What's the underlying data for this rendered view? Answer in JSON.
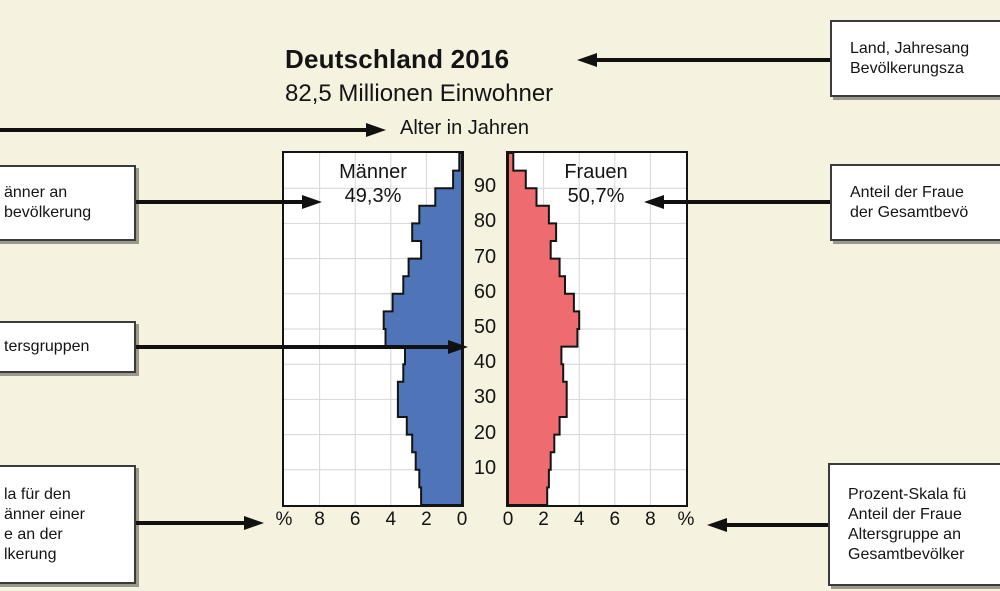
{
  "header": {
    "title": "Deutschland 2016",
    "subtitle": "82,5 Millionen Einwohner",
    "age_axis_label": "Alter in Jahren"
  },
  "chart": {
    "left_group": {
      "name": "Männer",
      "share": "49,3%"
    },
    "right_group": {
      "name": "Frauen",
      "share": "50,7%"
    },
    "age_ticks": [
      "90",
      "80",
      "70",
      "60",
      "50",
      "40",
      "30",
      "20",
      "10"
    ],
    "x_ticks_left": [
      "%",
      "8",
      "6",
      "4",
      "2",
      "0"
    ],
    "x_ticks_right": [
      "0",
      "2",
      "4",
      "6",
      "8",
      "%"
    ],
    "colors": {
      "men_fill": "#4f74b8",
      "women_fill": "#ee6c70",
      "grid": "#d6d6d6",
      "outline": "#141414",
      "background": "#f5f2df"
    }
  },
  "chart_data": {
    "type": "bar",
    "subtype": "population-pyramid",
    "title": "Deutschland 2016",
    "subtitle": "82,5 Millionen Einwohner",
    "xlabel_unit": "%",
    "ylabel": "Alter in Jahren",
    "x_range_each_side": [
      0,
      10
    ],
    "x_grid_step_pct": 2,
    "y_grid_step_years": 10,
    "age_max": 100,
    "age_groups": [
      "0-4",
      "5-9",
      "10-14",
      "15-19",
      "20-24",
      "25-29",
      "30-34",
      "35-39",
      "40-44",
      "45-49",
      "50-54",
      "55-59",
      "60-64",
      "65-69",
      "70-74",
      "75-79",
      "80-84",
      "85-89",
      "90-94",
      "95+"
    ],
    "series": [
      {
        "name": "Männer",
        "total_share_pct": 49.3,
        "side": "left",
        "values": [
          2.3,
          2.4,
          2.6,
          2.8,
          3.1,
          3.6,
          3.6,
          3.3,
          3.2,
          4.3,
          4.4,
          3.9,
          3.3,
          3.0,
          2.3,
          2.8,
          2.4,
          1.5,
          0.5,
          0.15
        ]
      },
      {
        "name": "Frauen",
        "total_share_pct": 50.7,
        "side": "right",
        "values": [
          2.2,
          2.3,
          2.4,
          2.6,
          2.9,
          3.3,
          3.3,
          3.1,
          3.0,
          3.9,
          4.0,
          3.7,
          3.2,
          2.9,
          2.4,
          2.7,
          2.3,
          1.6,
          1.0,
          0.3
        ]
      }
    ]
  },
  "callouts": {
    "left": [
      {
        "lines": [
          "änner an",
          "bevölkerung"
        ]
      },
      {
        "lines": [
          "tersgruppen"
        ]
      },
      {
        "lines": [
          "la für den",
          "änner einer",
          "e an der",
          "lkerung"
        ]
      }
    ],
    "right": [
      {
        "lines": [
          "Land, Jahresang",
          "Bevölkerungsza"
        ]
      },
      {
        "lines": [
          "Anteil der Fraue",
          "der Gesamtbevö"
        ]
      },
      {
        "lines": [
          "Prozent-Skala fü",
          "Anteil der Fraue",
          "Altersgruppe an",
          "Gesamtbevölker"
        ]
      }
    ]
  }
}
